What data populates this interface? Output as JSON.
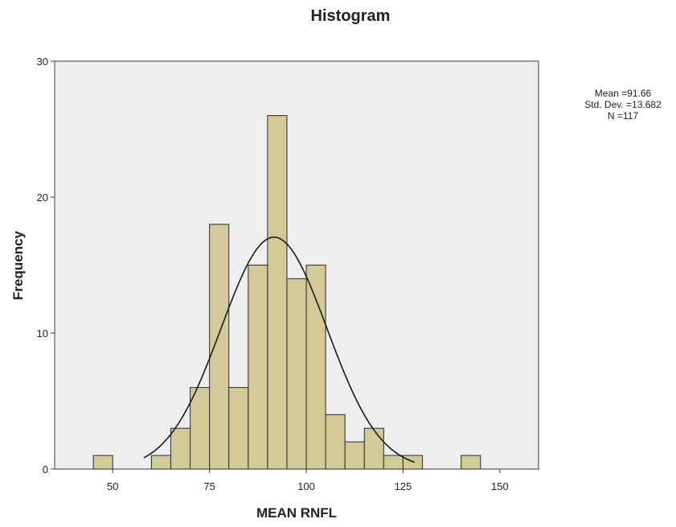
{
  "chart_data": {
    "type": "bar",
    "title": "Histogram",
    "xlabel": "MEAN RNFL",
    "ylabel": "Frequency",
    "xlim": [
      35,
      160
    ],
    "ylim": [
      0,
      30
    ],
    "x_ticks": [
      50,
      75,
      100,
      125,
      150
    ],
    "y_ticks": [
      0,
      10,
      20,
      30
    ],
    "grid": false,
    "bin_width": 5,
    "bins": [
      {
        "start": 45,
        "end": 50,
        "count": 1
      },
      {
        "start": 50,
        "end": 55,
        "count": 0
      },
      {
        "start": 55,
        "end": 60,
        "count": 0
      },
      {
        "start": 60,
        "end": 65,
        "count": 1
      },
      {
        "start": 65,
        "end": 70,
        "count": 3
      },
      {
        "start": 70,
        "end": 75,
        "count": 6
      },
      {
        "start": 75,
        "end": 80,
        "count": 18
      },
      {
        "start": 80,
        "end": 85,
        "count": 6
      },
      {
        "start": 85,
        "end": 90,
        "count": 15
      },
      {
        "start": 90,
        "end": 95,
        "count": 26
      },
      {
        "start": 95,
        "end": 100,
        "count": 14
      },
      {
        "start": 100,
        "end": 105,
        "count": 15
      },
      {
        "start": 105,
        "end": 110,
        "count": 4
      },
      {
        "start": 110,
        "end": 115,
        "count": 2
      },
      {
        "start": 115,
        "end": 120,
        "count": 3
      },
      {
        "start": 120,
        "end": 125,
        "count": 1
      },
      {
        "start": 125,
        "end": 130,
        "count": 1
      },
      {
        "start": 130,
        "end": 135,
        "count": 0
      },
      {
        "start": 135,
        "end": 140,
        "count": 0
      },
      {
        "start": 140,
        "end": 145,
        "count": 1
      }
    ],
    "normal_curve": {
      "mean": 91.66,
      "sd": 13.682,
      "n": 117
    },
    "stats_box": {
      "mean": "Mean =91.66",
      "sd": "Std. Dev. =13.682",
      "n": "N =117",
      "position": "top-right"
    },
    "colors": {
      "bar_fill": "#d3ca97",
      "bar_stroke": "#3a3a3a",
      "plot_background": "#eeeeee",
      "curve": "#1a1a1a"
    }
  }
}
